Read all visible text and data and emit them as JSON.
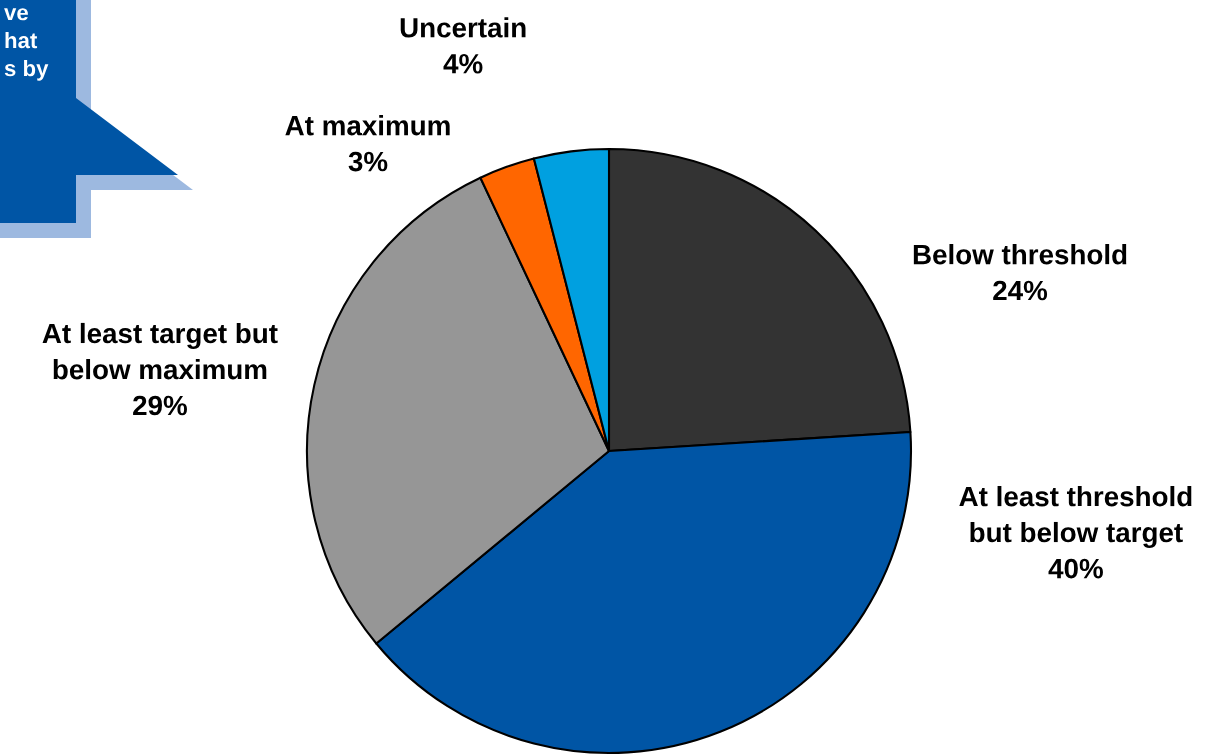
{
  "chart_data": {
    "type": "pie",
    "categories": [
      "Below threshold",
      "At least threshold\nbut below target",
      "At least target but\nbelow maximum",
      "At maximum",
      "Uncertain"
    ],
    "values": [
      24,
      40,
      29,
      3,
      4
    ],
    "colors": [
      "#333333",
      "#0055a5",
      "#969696",
      "#ff6600",
      "#00a0e0"
    ],
    "value_labels": [
      "24%",
      "40%",
      "29%",
      "3%",
      "4%"
    ],
    "annotations": [
      "ve\nhat\ns by"
    ]
  }
}
